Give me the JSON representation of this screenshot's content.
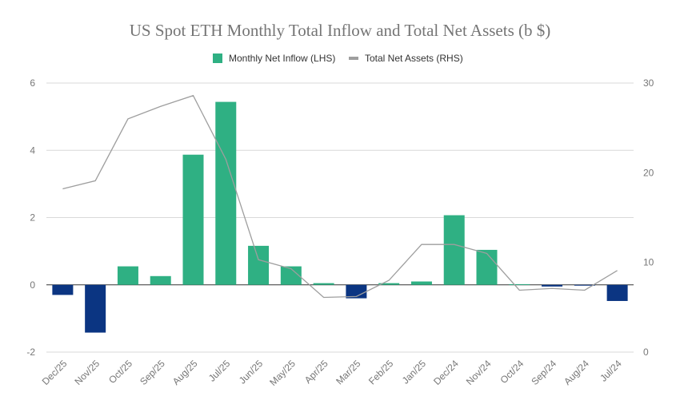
{
  "chart_data": {
    "type": "bar",
    "title": "US Spot ETH Monthly Total Inflow and Total Net Assets (b $)",
    "categories": [
      "Dec/25",
      "Nov/25",
      "Oct/25",
      "Sep/25",
      "Aug/25",
      "Jul/25",
      "Jun/25",
      "May/25",
      "Apr/25",
      "Mar/25",
      "Feb/25",
      "Jan/25",
      "Dec/24",
      "Nov/24",
      "Oct/24",
      "Sep/24",
      "Aug/24",
      "Jul/24"
    ],
    "series": [
      {
        "name": "Monthly Net Inflow (LHS)",
        "type": "bar",
        "axis": "left",
        "values": [
          -0.3,
          -1.42,
          0.55,
          0.26,
          3.87,
          5.44,
          1.16,
          0.55,
          0.05,
          -0.4,
          0.05,
          0.1,
          2.07,
          1.04,
          0.02,
          -0.05,
          -0.01,
          -0.48
        ],
        "color_positive": "#2fb083",
        "color_negative": "#0b3582"
      },
      {
        "name": "Total Net Assets (RHS)",
        "type": "line",
        "axis": "right",
        "values": [
          18.2,
          19.1,
          26.0,
          27.4,
          28.6,
          21.5,
          10.3,
          9.3,
          6.1,
          6.2,
          8.0,
          12.0,
          12.0,
          11.0,
          6.9,
          7.1,
          6.9,
          9.1
        ],
        "color": "#9e9e9e"
      }
    ],
    "ylim_left": [
      -2,
      6
    ],
    "yticks_left": [
      -2,
      0,
      2,
      4,
      6
    ],
    "ylim_right": [
      0,
      30
    ],
    "yticks_right": [
      0,
      10,
      20,
      30
    ],
    "grid": true,
    "legend": "top"
  }
}
